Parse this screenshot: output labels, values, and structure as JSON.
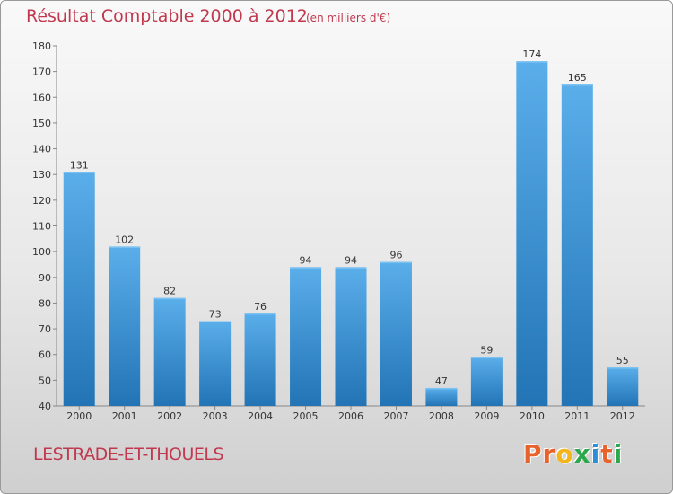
{
  "chart_data": {
    "type": "bar",
    "title": "Résultat Comptable 2000 à 2012",
    "subtitle": "(en milliers d'€)",
    "categories": [
      "2000",
      "2001",
      "2002",
      "2003",
      "2004",
      "2005",
      "2006",
      "2007",
      "2008",
      "2009",
      "2010",
      "2011",
      "2012"
    ],
    "values": [
      131,
      102,
      82,
      73,
      76,
      94,
      94,
      96,
      47,
      59,
      174,
      165,
      55
    ],
    "ylim": [
      40,
      180
    ],
    "yticks": [
      40,
      50,
      60,
      70,
      80,
      90,
      100,
      110,
      120,
      130,
      140,
      150,
      160,
      170,
      180
    ],
    "grid": false,
    "bar_color": "#4a9fe0",
    "bar_color_dark": "#2277b8"
  },
  "footer": {
    "town": "LESTRADE-ET-THOUELS",
    "logo_letters": [
      "P",
      "r",
      "o",
      "x",
      "i",
      "t",
      "i"
    ],
    "logo_colors": [
      "#e8622c",
      "#e8622c",
      "#f2b61c",
      "#2ba84a",
      "#2b8fd6",
      "#e8622c",
      "#2ba84a"
    ]
  }
}
